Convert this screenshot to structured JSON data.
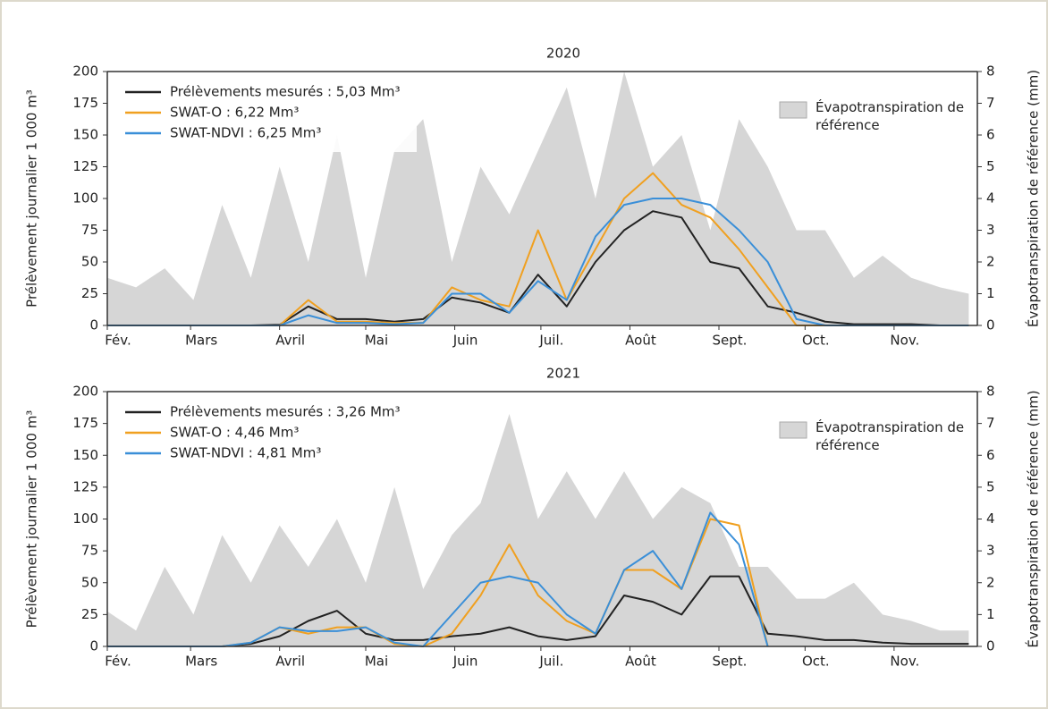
{
  "chart_data": [
    {
      "type": "line",
      "title": "2020",
      "y_label": "Prélèvement journalier 1 000 m³",
      "y2_label": "Évapotranspiration de référence (mm)",
      "x": [
        0,
        10,
        20,
        30,
        40,
        50,
        60,
        70,
        80,
        90,
        100,
        110,
        120,
        130,
        140,
        150,
        160,
        170,
        180,
        190,
        200,
        210,
        220,
        230,
        240,
        250,
        260,
        270,
        280,
        290,
        300
      ],
      "xlim": [
        0,
        303
      ],
      "xticks": [
        {
          "value": 0,
          "label": "Fév."
        },
        {
          "value": 29,
          "label": "Mars"
        },
        {
          "value": 60,
          "label": "Avril"
        },
        {
          "value": 90,
          "label": "Mai"
        },
        {
          "value": 121,
          "label": "Juin"
        },
        {
          "value": 151,
          "label": "Juil."
        },
        {
          "value": 182,
          "label": "Août"
        },
        {
          "value": 213,
          "label": "Sept."
        },
        {
          "value": 243,
          "label": "Oct."
        },
        {
          "value": 274,
          "label": "Nov."
        }
      ],
      "ylim": [
        0,
        200
      ],
      "yticks": [
        0,
        25,
        50,
        75,
        100,
        125,
        150,
        175,
        200
      ],
      "y2lim": [
        0,
        8
      ],
      "y2ticks": [
        0,
        1,
        2,
        3,
        4,
        5,
        6,
        7,
        8
      ],
      "series": [
        {
          "name": "Évapotranspiration de référence",
          "color": "#d6d6d6",
          "axis": "y2",
          "kind": "area",
          "values": [
            1.5,
            1.2,
            1.8,
            0.8,
            3.8,
            1.5,
            5,
            2,
            6,
            1.5,
            5.5,
            6.5,
            2,
            5,
            3.5,
            5.5,
            7.5,
            4,
            8,
            5,
            6,
            3,
            6.5,
            5,
            3,
            3,
            1.5,
            2.2,
            1.5,
            1.2,
            1
          ]
        },
        {
          "name": "Prélèvements mesurés : 5,03 Mm³",
          "color": "#222222",
          "values": [
            0,
            0,
            0,
            0,
            0,
            0,
            0.5,
            15,
            5,
            5,
            3,
            5,
            22,
            18,
            10,
            40,
            15,
            50,
            75,
            90,
            85,
            50,
            45,
            15,
            10,
            3,
            1,
            1,
            1,
            0,
            0
          ]
        },
        {
          "name": "SWAT-O : 6,22 Mm³",
          "color": "#f0a020",
          "values": [
            0,
            0,
            0,
            0,
            0,
            0,
            0,
            20,
            3,
            3,
            2,
            2,
            30,
            20,
            15,
            75,
            20,
            60,
            100,
            120,
            95,
            85,
            60,
            30,
            0,
            0,
            0,
            0,
            0,
            0,
            0
          ]
        },
        {
          "name": "SWAT-NDVI : 6,25 Mm³",
          "color": "#3a8fd8",
          "values": [
            0,
            0,
            0,
            0,
            0,
            0,
            0,
            8,
            2,
            2,
            1,
            2,
            25,
            25,
            10,
            35,
            20,
            70,
            95,
            100,
            100,
            95,
            75,
            50,
            5,
            0,
            0,
            0,
            0,
            0,
            0
          ]
        }
      ]
    },
    {
      "type": "line",
      "title": "2021",
      "y_label": "Prélèvement journalier 1 000 m³",
      "y2_label": "Évapotranspiration de référence (mm)",
      "x": [
        0,
        10,
        20,
        30,
        40,
        50,
        60,
        70,
        80,
        90,
        100,
        110,
        120,
        130,
        140,
        150,
        160,
        170,
        180,
        190,
        200,
        210,
        220,
        230,
        240,
        250,
        260,
        270,
        280,
        290,
        300
      ],
      "xlim": [
        0,
        303
      ],
      "xticks": [
        {
          "value": 0,
          "label": "Fév."
        },
        {
          "value": 29,
          "label": "Mars"
        },
        {
          "value": 60,
          "label": "Avril"
        },
        {
          "value": 90,
          "label": "Mai"
        },
        {
          "value": 121,
          "label": "Juin"
        },
        {
          "value": 151,
          "label": "Juil."
        },
        {
          "value": 182,
          "label": "Août"
        },
        {
          "value": 213,
          "label": "Sept."
        },
        {
          "value": 243,
          "label": "Oct."
        },
        {
          "value": 274,
          "label": "Nov."
        }
      ],
      "ylim": [
        0,
        200
      ],
      "yticks": [
        0,
        25,
        50,
        75,
        100,
        125,
        150,
        175,
        200
      ],
      "y2lim": [
        0,
        8
      ],
      "y2ticks": [
        0,
        1,
        2,
        3,
        4,
        5,
        6,
        7,
        8
      ],
      "series": [
        {
          "name": "Évapotranspiration de référence",
          "color": "#d6d6d6",
          "axis": "y2",
          "kind": "area",
          "values": [
            1.1,
            0.5,
            2.5,
            1,
            3.5,
            2,
            3.8,
            2.5,
            4,
            2,
            5,
            1.8,
            3.5,
            4.5,
            7.3,
            4,
            5.5,
            4,
            5.5,
            4,
            5,
            4.5,
            2.5,
            2.5,
            1.5,
            1.5,
            2,
            1,
            0.8,
            0.5,
            0.5
          ]
        },
        {
          "name": "Prélèvements mesurés : 3,26 Mm³",
          "color": "#222222",
          "values": [
            0,
            0,
            0,
            0,
            0,
            2,
            8,
            20,
            28,
            10,
            5,
            5,
            8,
            10,
            15,
            8,
            5,
            8,
            40,
            35,
            25,
            55,
            55,
            10,
            8,
            5,
            5,
            3,
            2,
            2,
            2
          ]
        },
        {
          "name": "SWAT-O : 4,46 Mm³",
          "color": "#f0a020",
          "values": [
            0,
            0,
            0,
            0,
            0,
            3,
            15,
            10,
            15,
            15,
            2,
            0,
            10,
            40,
            80,
            40,
            20,
            10,
            60,
            60,
            45,
            100,
            95,
            0,
            null,
            null,
            null,
            null,
            null,
            null,
            null
          ]
        },
        {
          "name": "SWAT-NDVI : 4,81 Mm³",
          "color": "#3a8fd8",
          "values": [
            0,
            0,
            0,
            0,
            0,
            3,
            15,
            12,
            12,
            15,
            3,
            0,
            25,
            50,
            55,
            50,
            25,
            10,
            60,
            75,
            45,
            105,
            80,
            0,
            null,
            null,
            null,
            null,
            null,
            null,
            null
          ]
        }
      ]
    }
  ]
}
